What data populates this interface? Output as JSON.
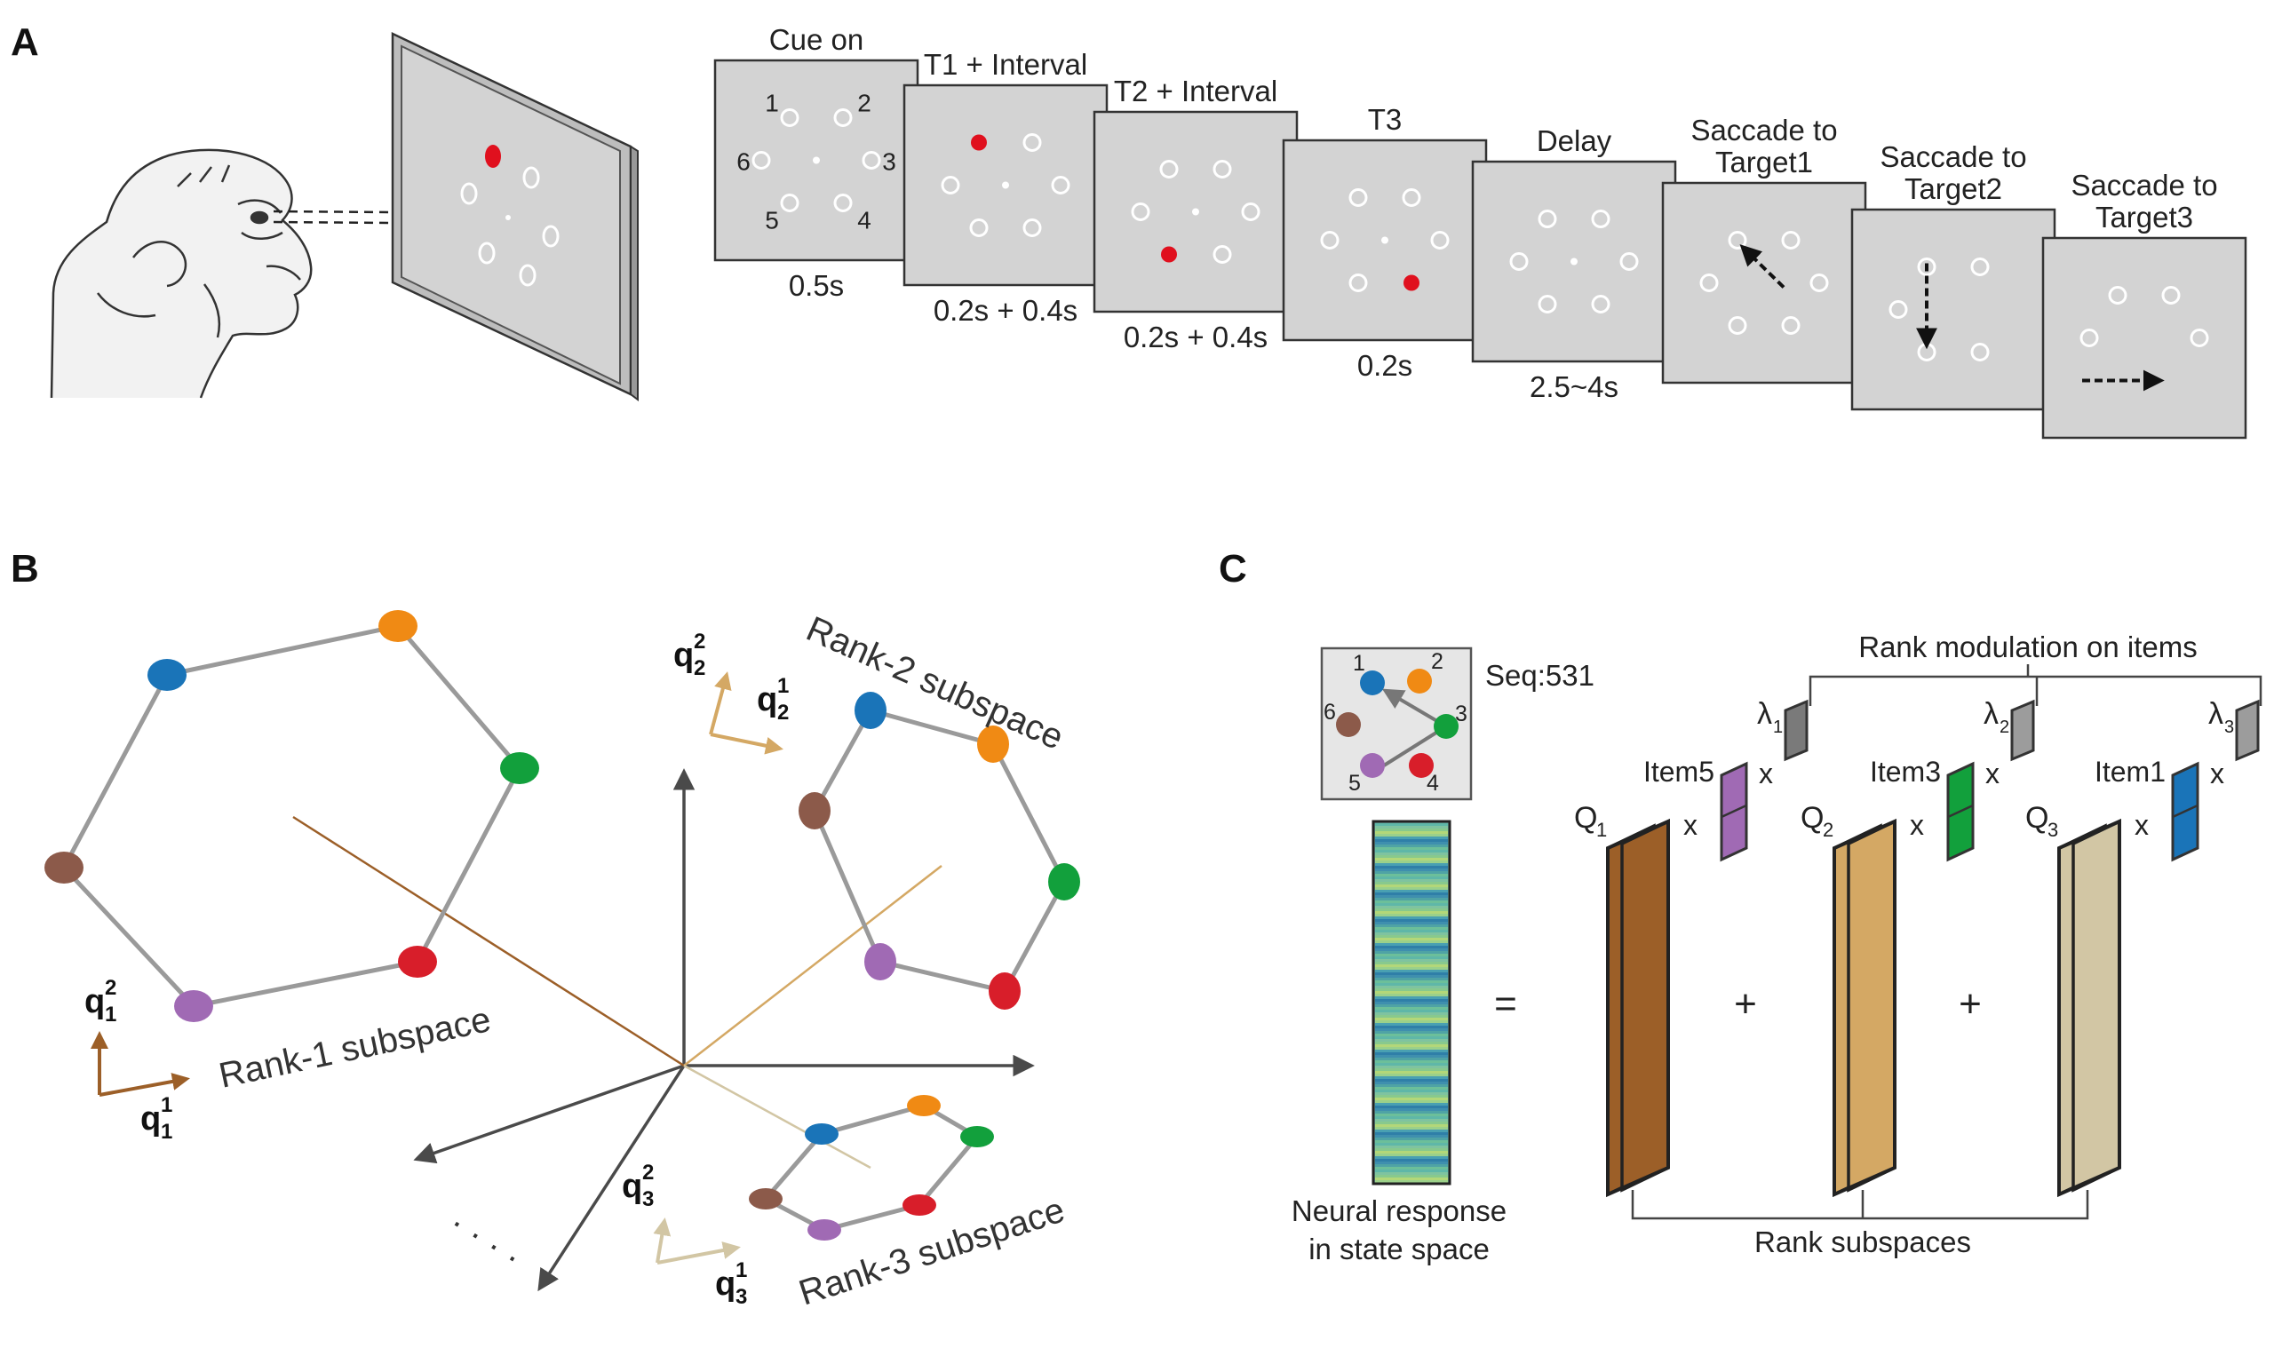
{
  "panel_a": {
    "letter": "A",
    "stages": [
      {
        "title": [
          "Cue on"
        ],
        "time": "0.5s"
      },
      {
        "title": [
          "T1 + Interval"
        ],
        "time": "0.2s + 0.4s"
      },
      {
        "title": [
          "T2 + Interval"
        ],
        "time": "0.2s + 0.4s"
      },
      {
        "title": [
          "T3"
        ],
        "time": "0.2s"
      },
      {
        "title": [
          "Delay"
        ],
        "time": "2.5~4s"
      },
      {
        "title": [
          "Saccade to",
          "Target1"
        ],
        "time": ""
      },
      {
        "title": [
          "Saccade to",
          "Target2"
        ],
        "time": ""
      },
      {
        "title": [
          "Saccade to",
          "Target3"
        ],
        "time": ""
      }
    ],
    "location_numbers": [
      "1",
      "2",
      "3",
      "4",
      "5",
      "6"
    ]
  },
  "panel_b": {
    "letter": "B",
    "rank1_label": "Rank-1 subspace",
    "rank2_label": "Rank-2 subspace",
    "rank3_label": "Rank-3 subspace",
    "q1_main": "q",
    "q1_sup1": "2",
    "q1_sub1": "1",
    "q1_sup2": "1",
    "q1_sub2": "1",
    "q2_sup1": "2",
    "q2_sub1": "2",
    "q2_sup2": "1",
    "q2_sub2": "2",
    "q3_sup1": "2",
    "q3_sub1": "3",
    "q3_sup2": "1",
    "q3_sub2": "3",
    "ellipsis": "· · · ·"
  },
  "panel_c": {
    "letter": "C",
    "seq_label": "Seq:531",
    "location_numbers": [
      "1",
      "2",
      "3",
      "4",
      "5",
      "6"
    ],
    "neural_label": [
      "Neural response",
      "in state space"
    ],
    "equals": "=",
    "plus": "+",
    "times": "x",
    "rank_modulation": "Rank modulation on items",
    "rank_subspaces": "Rank subspaces",
    "terms": [
      {
        "q": "Q",
        "q_sub": "1",
        "item": "Item5",
        "lambda": "λ",
        "lambda_sub": "1"
      },
      {
        "q": "Q",
        "q_sub": "2",
        "item": "Item3",
        "lambda": "λ",
        "lambda_sub": "2"
      },
      {
        "q": "Q",
        "q_sub": "3",
        "item": "Item1",
        "lambda": "λ",
        "lambda_sub": "3"
      }
    ]
  },
  "colors": {
    "item1": "#1a74b8",
    "item2": "#f08a14",
    "item3": "#12a03c",
    "item4": "#d81e2a",
    "item5": "#a06ab4",
    "item6": "#8c5a4a",
    "rank1": "#9c5f28",
    "rank2": "#d4a864",
    "rank3": "#d2c6a4",
    "target_red": "#e0101e",
    "screen": "#d3d3d3"
  }
}
